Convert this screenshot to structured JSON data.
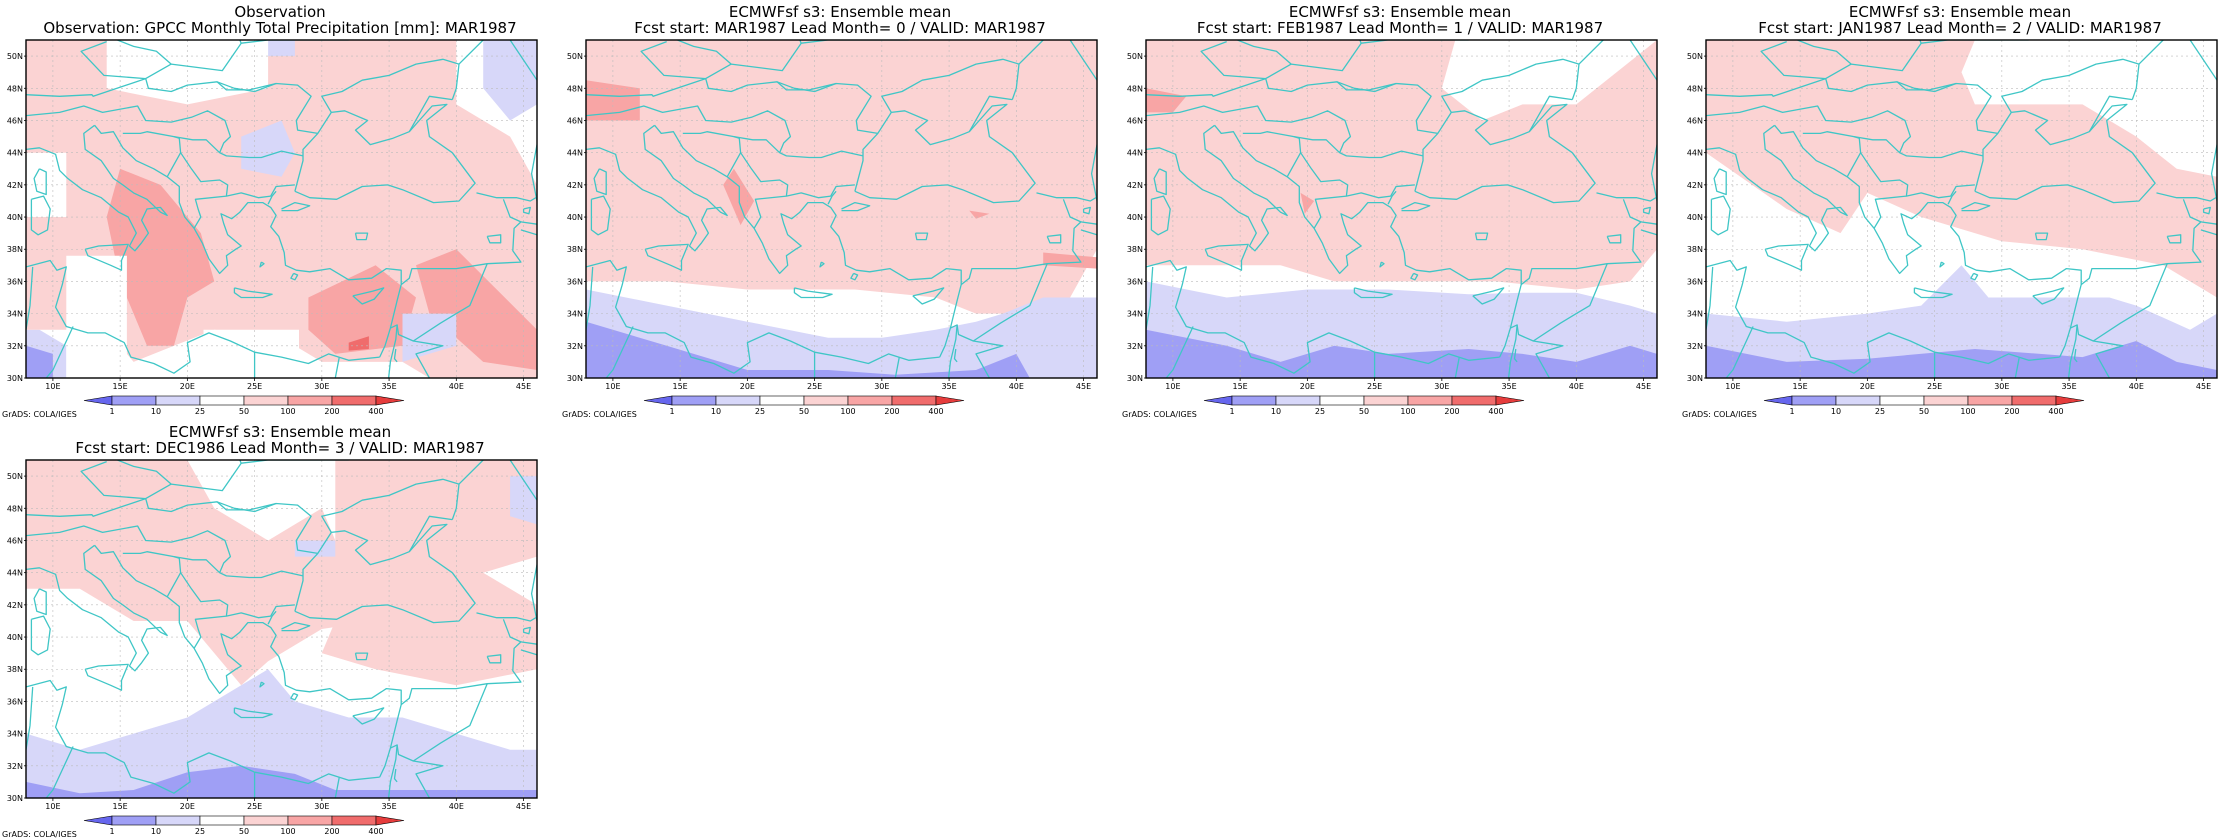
{
  "palette": {
    "blue_dark": "#9f9ff5",
    "blue_light": "#d7d7f9",
    "red_light": "#fbd3d3",
    "red_mid": "#f8a5a5",
    "red_dark": "#f06c6c",
    "coast": "#3fc6c6",
    "grid": "#bbbbbb"
  },
  "map_extent": {
    "lon": [
      8,
      46
    ],
    "lat": [
      30,
      51
    ]
  },
  "lat_labels": [
    "30N",
    "32N",
    "34N",
    "36N",
    "38N",
    "40N",
    "42N",
    "44N",
    "46N",
    "48N",
    "50N"
  ],
  "lon_labels": [
    "10E",
    "15E",
    "20E",
    "25E",
    "30E",
    "35E",
    "40E",
    "45E"
  ],
  "colorbar": {
    "levels": [
      "1",
      "10",
      "25",
      "50",
      "100",
      "200",
      "400"
    ],
    "colors": [
      "#6666ee",
      "#9f9ff5",
      "#d7d7f9",
      "#ffffff",
      "#fbd3d3",
      "#f8a5a5",
      "#f06c6c",
      "#e63c3c"
    ]
  },
  "credit": "GrADS: COLA/IGES",
  "panels": [
    {
      "title1": "Observation",
      "title2": "Observation: GPCC Monthly Total Precipitation [mm]: MAR1987"
    },
    {
      "title1": "ECMWFsf s3: Ensemble mean",
      "title2": "Fcst start: MAR1987  Lead Month= 0 / VALID: MAR1987"
    },
    {
      "title1": "ECMWFsf s3: Ensemble mean",
      "title2": "Fcst start: FEB1987  Lead Month= 1 / VALID: MAR1987"
    },
    {
      "title1": "ECMWFsf s3: Ensemble mean",
      "title2": "Fcst start: JAN1987  Lead Month= 2 / VALID: MAR1987"
    },
    {
      "title1": "ECMWFsf s3: Ensemble mean",
      "title2": "Fcst start: DEC1986  Lead Month= 3 / VALID: MAR1987"
    }
  ]
}
